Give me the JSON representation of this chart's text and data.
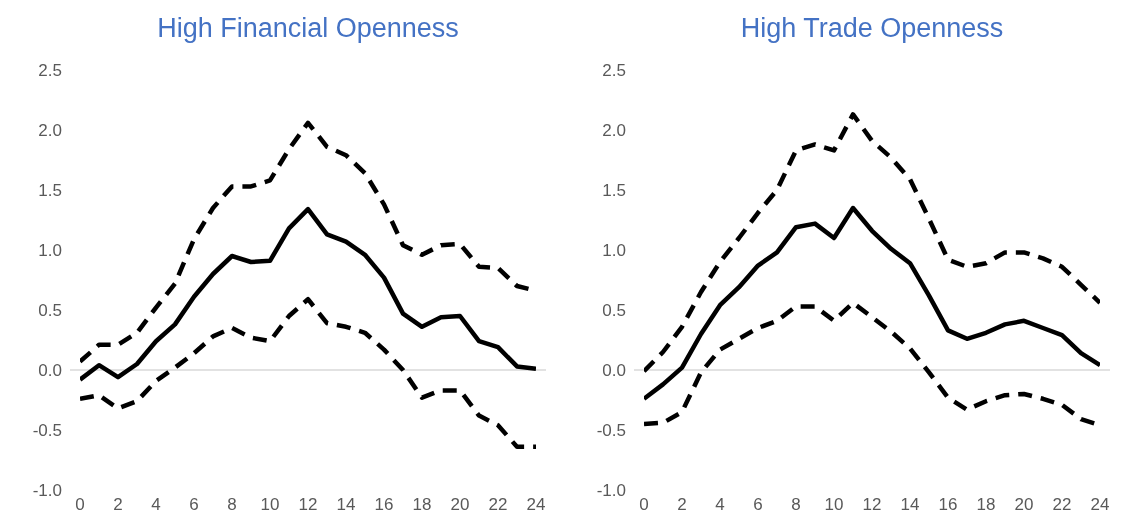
{
  "chart_data": [
    {
      "type": "line",
      "title": "High Financial Openness",
      "x": [
        0,
        1,
        2,
        3,
        4,
        5,
        6,
        7,
        8,
        9,
        10,
        11,
        12,
        13,
        14,
        15,
        16,
        17,
        18,
        19,
        20,
        21,
        22,
        23,
        24
      ],
      "xlim": [
        0,
        24
      ],
      "xticks": [
        0,
        2,
        4,
        6,
        8,
        10,
        12,
        14,
        16,
        18,
        20,
        22,
        24
      ],
      "ylim": [
        -1,
        2.5
      ],
      "yticks": [
        {
          "value": -1,
          "label": "-1.0"
        },
        -0.5,
        {
          "value": 0,
          "label": "0.0"
        },
        0.5,
        {
          "value": 1,
          "label": "1.0"
        },
        1.5,
        {
          "value": 2,
          "label": "2.0"
        },
        2.5
      ],
      "grid": false,
      "marker": "none",
      "ref_lines": [
        {
          "axis": "y",
          "value": 0,
          "color": "#d9d9d9"
        }
      ],
      "series": [
        {
          "color": "#000000",
          "line_style": "dashed",
          "values": [
            0.07,
            0.21,
            0.21,
            0.31,
            0.52,
            0.72,
            1.09,
            1.35,
            1.53,
            1.53,
            1.58,
            1.84,
            2.06,
            1.86,
            1.79,
            1.64,
            1.38,
            1.04,
            0.96,
            1.04,
            1.05,
            0.86,
            0.85,
            0.7,
            0.66
          ]
        },
        {
          "color": "#000000",
          "line_style": "solid",
          "values": [
            -0.08,
            0.04,
            -0.06,
            0.05,
            0.24,
            0.38,
            0.61,
            0.8,
            0.95,
            0.9,
            0.91,
            1.18,
            1.34,
            1.13,
            1.07,
            0.96,
            0.77,
            0.47,
            0.36,
            0.44,
            0.45,
            0.24,
            0.19,
            0.03,
            0.01
          ]
        },
        {
          "color": "#000000",
          "line_style": "dashed",
          "values": [
            -0.24,
            -0.21,
            -0.32,
            -0.26,
            -0.09,
            0.02,
            0.14,
            0.28,
            0.35,
            0.27,
            0.24,
            0.45,
            0.59,
            0.39,
            0.36,
            0.31,
            0.17,
            0.0,
            -0.23,
            -0.17,
            -0.17,
            -0.38,
            -0.46,
            -0.64,
            -0.64
          ]
        }
      ]
    },
    {
      "type": "line",
      "title": "High Trade Openness",
      "x": [
        0,
        1,
        2,
        3,
        4,
        5,
        6,
        7,
        8,
        9,
        10,
        11,
        12,
        13,
        14,
        15,
        16,
        17,
        18,
        19,
        20,
        21,
        22,
        23,
        24
      ],
      "xlim": [
        0,
        24
      ],
      "xticks": [
        0,
        2,
        4,
        6,
        8,
        10,
        12,
        14,
        16,
        18,
        20,
        22,
        24
      ],
      "ylim": [
        -1,
        2.5
      ],
      "yticks": [
        {
          "value": -1,
          "label": "-1.0"
        },
        -0.5,
        {
          "value": 0,
          "label": "0.0"
        },
        0.5,
        {
          "value": 1,
          "label": "1.0"
        },
        1.5,
        {
          "value": 2,
          "label": "2.0"
        },
        2.5
      ],
      "grid": false,
      "marker": "none",
      "ref_lines": [
        {
          "axis": "y",
          "value": 0,
          "color": "#d9d9d9"
        }
      ],
      "series": [
        {
          "color": "#000000",
          "line_style": "dashed",
          "values": [
            -0.01,
            0.15,
            0.36,
            0.65,
            0.9,
            1.1,
            1.31,
            1.5,
            1.83,
            1.88,
            1.83,
            2.13,
            1.91,
            1.77,
            1.59,
            1.26,
            0.92,
            0.86,
            0.89,
            0.98,
            0.98,
            0.93,
            0.86,
            0.71,
            0.56
          ]
        },
        {
          "color": "#000000",
          "line_style": "solid",
          "values": [
            -0.24,
            -0.12,
            0.02,
            0.3,
            0.54,
            0.69,
            0.87,
            0.98,
            1.19,
            1.22,
            1.1,
            1.35,
            1.16,
            1.01,
            0.89,
            0.62,
            0.33,
            0.26,
            0.31,
            0.38,
            0.41,
            0.35,
            0.29,
            0.14,
            0.04
          ]
        },
        {
          "color": "#000000",
          "line_style": "dashed",
          "values": [
            -0.45,
            -0.44,
            -0.35,
            -0.02,
            0.17,
            0.26,
            0.35,
            0.41,
            0.53,
            0.53,
            0.41,
            0.56,
            0.44,
            0.32,
            0.18,
            -0.02,
            -0.23,
            -0.33,
            -0.26,
            -0.21,
            -0.2,
            -0.24,
            -0.29,
            -0.41,
            -0.46
          ]
        }
      ]
    }
  ]
}
